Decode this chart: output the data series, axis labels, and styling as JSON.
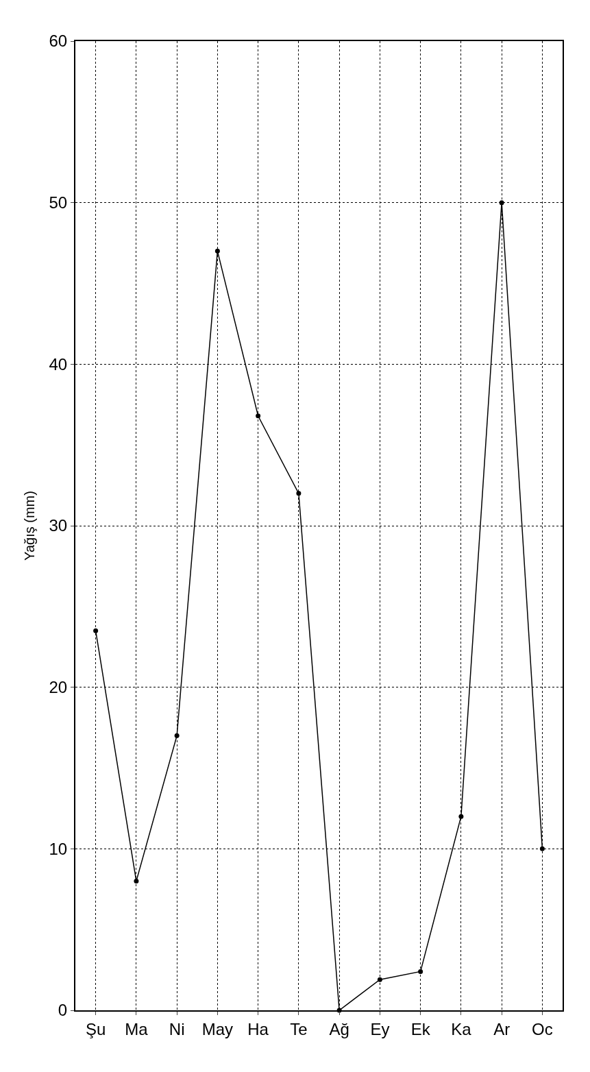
{
  "chart_data": {
    "type": "line",
    "ylabel": "Yağış (mm)",
    "categories": [
      "Şu",
      "Ma",
      "Ni",
      "May",
      "Ha",
      "Te",
      "Ağ",
      "Ey",
      "Ek",
      "Ka",
      "Ar",
      "Oc"
    ],
    "series": [
      {
        "color": "#000000",
        "values": [
          23.5,
          8,
          17,
          47,
          36.8,
          32,
          0,
          1.9,
          2.4,
          12,
          50,
          10
        ]
      }
    ],
    "ylim": [
      0,
      60
    ],
    "yticks": [
      0,
      10,
      20,
      30,
      40,
      50,
      60
    ],
    "grid": true,
    "marker": "circle",
    "line_style": "solid",
    "legend": false
  }
}
